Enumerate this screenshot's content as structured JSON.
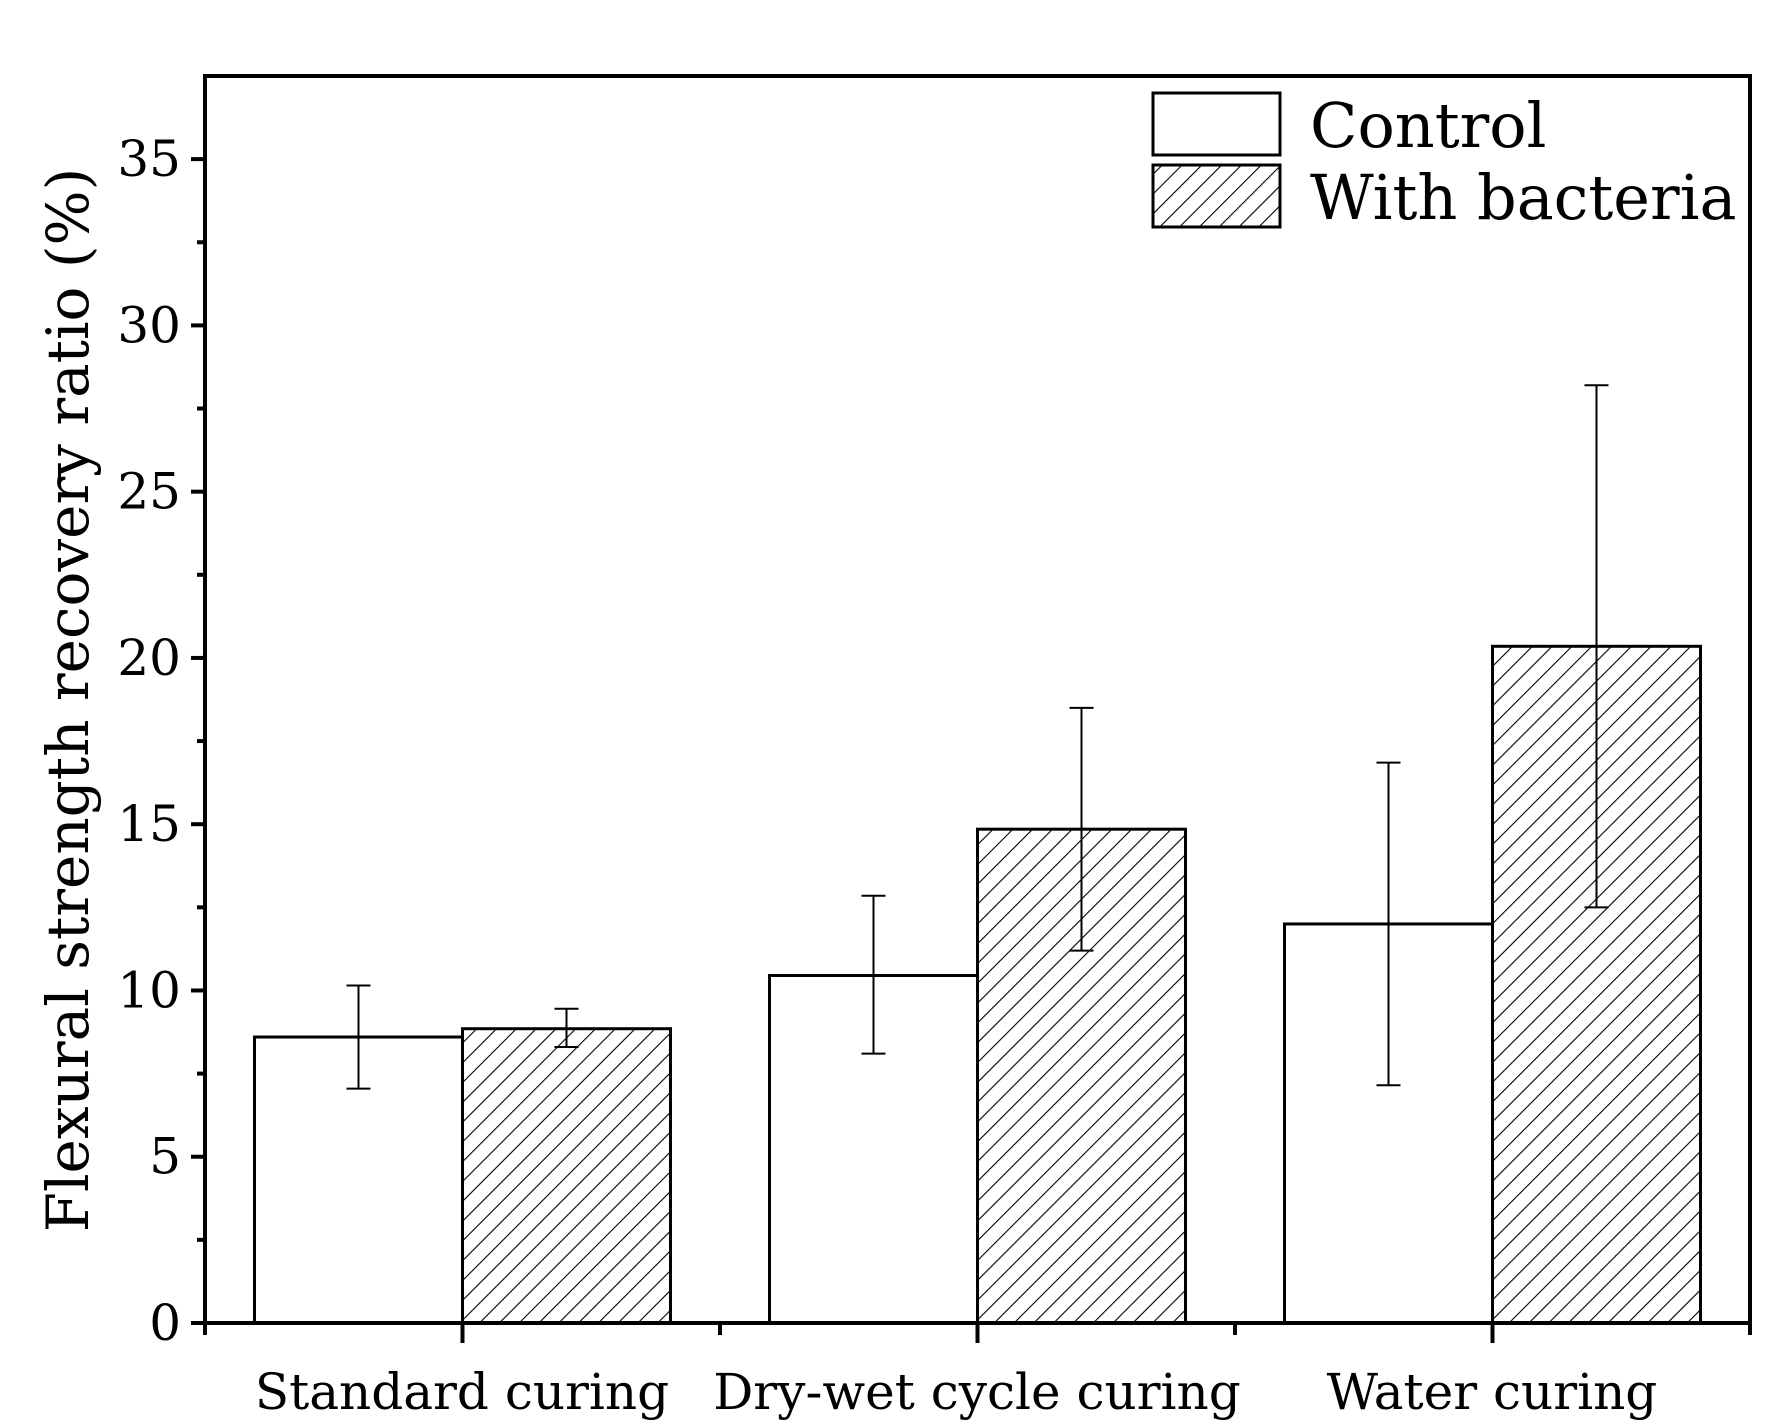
{
  "chart_data": {
    "type": "bar",
    "title": "",
    "xlabel": "",
    "ylabel": "Flexural strength recovery ratio (%)",
    "ylim": [
      0,
      37.5
    ],
    "yticks": [
      0,
      5,
      10,
      15,
      20,
      25,
      30,
      35
    ],
    "ytick_labels": [
      "0",
      "5",
      "10",
      "15",
      "20",
      "25",
      "30",
      "35"
    ],
    "categories": [
      "Standard curing",
      "Dry-wet cycle curing",
      "Water curing"
    ],
    "series": [
      {
        "name": "Control",
        "fill": "open",
        "values": [
          8.6,
          10.45,
          12.0
        ],
        "error_low": [
          7.05,
          8.1,
          7.15
        ],
        "error_high": [
          10.15,
          12.85,
          16.85
        ]
      },
      {
        "name": "With bacteria",
        "fill": "hatched",
        "values": [
          8.85,
          14.85,
          20.35
        ],
        "error_low": [
          8.3,
          11.2,
          12.5
        ],
        "error_high": [
          9.45,
          18.5,
          28.2
        ]
      }
    ],
    "legend_position": "top-right",
    "grid": false,
    "colors": {
      "stroke": "#000000",
      "background": "#ffffff"
    }
  }
}
